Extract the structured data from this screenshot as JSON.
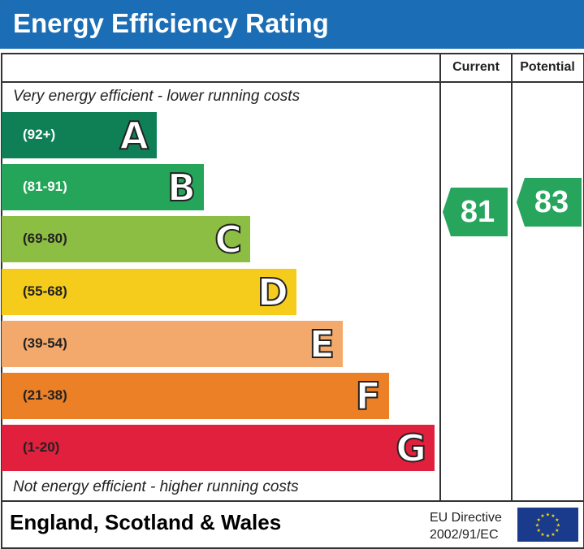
{
  "title": "Energy Efficiency Rating",
  "header": {
    "current": "Current",
    "potential": "Potential"
  },
  "top_note": "Very energy efficient - lower running costs",
  "bottom_note": "Not energy efficient - higher running costs",
  "footer": {
    "region": "England, Scotland & Wales",
    "directive_line1": "EU Directive",
    "directive_line2": "2002/91/EC"
  },
  "chart_data": {
    "type": "bar",
    "categories": [
      "A",
      "B",
      "C",
      "D",
      "E",
      "F",
      "G"
    ],
    "ranges": [
      "(92+)",
      "(81-91)",
      "(69-80)",
      "(55-68)",
      "(39-54)",
      "(21-38)",
      "(1-20)"
    ],
    "colors": [
      "#0f8055",
      "#24a55a",
      "#8dbe44",
      "#f5cc1b",
      "#f2a96b",
      "#ec8026",
      "#e0203d"
    ],
    "range_text_colors": [
      "#ffffff",
      "#ffffff",
      "#222222",
      "#222222",
      "#222222",
      "#222222",
      "#222222"
    ],
    "current": {
      "value": 81,
      "band": "B",
      "color": "#27a55d"
    },
    "potential": {
      "value": 83,
      "band": "B",
      "color": "#27a55d"
    }
  }
}
